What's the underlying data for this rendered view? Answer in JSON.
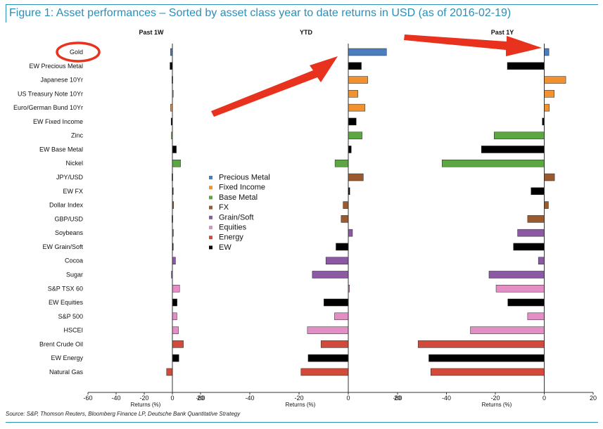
{
  "title": "Figure 1: Asset performances – Sorted by asset class year to date returns in USD (as of 2016-02-19)",
  "source": "Source: S&P, Thomson Reuters, Bloomberg Finance LP, Deutsche Bank Quantitative Strategy",
  "colors": {
    "Precious Metal": "#4a7ebf",
    "Fixed Income": "#f29130",
    "Base Metal": "#5da644",
    "FX": "#9a5a2e",
    "Grain/Soft": "#8b5aa3",
    "Equities": "#e38fc6",
    "Energy": "#d24a3a",
    "EW": "#000000",
    "annotation": "#e8321e"
  },
  "chart_data": {
    "type": "bar",
    "orientation": "horizontal",
    "categories": [
      "Gold",
      "EW Precious Metal",
      "Japanese 10Yr",
      "US Treasury Note 10Yr",
      "Euro/German Bund 10Yr",
      "EW Fixed Income",
      "Zinc",
      "EW Base Metal",
      "Nickel",
      "JPY/USD",
      "EW FX",
      "Dollar Index",
      "GBP/USD",
      "Soybeans",
      "EW Grain/Soft",
      "Cocoa",
      "Sugar",
      "S&P TSX 60",
      "EW Equities",
      "S&P 500",
      "HSCEI",
      "Brent Crude Oil",
      "EW Energy",
      "Natural Gas"
    ],
    "groups": [
      "Precious Metal",
      "Precious Metal",
      "Fixed Income",
      "Fixed Income",
      "Fixed Income",
      "Fixed Income",
      "Base Metal",
      "Base Metal",
      "Base Metal",
      "FX",
      "FX",
      "FX",
      "FX",
      "Grain/Soft",
      "Grain/Soft",
      "Grain/Soft",
      "Grain/Soft",
      "Equities",
      "Equities",
      "Equities",
      "Equities",
      "Energy",
      "Energy",
      "Energy"
    ],
    "ew_rows": [
      "EW Precious Metal",
      "EW Fixed Income",
      "EW Base Metal",
      "EW FX",
      "EW Grain/Soft",
      "EW Equities",
      "EW Energy"
    ],
    "legend": [
      "Precious Metal",
      "Fixed Income",
      "Base Metal",
      "FX",
      "Grain/Soft",
      "Equities",
      "Energy",
      "EW"
    ],
    "highlighted_category": "Gold",
    "panels": [
      {
        "title": "Past 1W",
        "xlabel": "Returns (%)",
        "xlim": [
          -60,
          20
        ],
        "ticks": [
          -60,
          -40,
          -20,
          0,
          20
        ],
        "values": [
          -1.3,
          -1.7,
          -0.3,
          0.2,
          -1.3,
          -0.9,
          -0.7,
          2.8,
          5.8,
          -0.3,
          0.3,
          0.9,
          -0.3,
          0.7,
          0.2,
          2.2,
          -0.7,
          5.1,
          3.3,
          3.2,
          4.3,
          7.8,
          4.6,
          -4.1
        ]
      },
      {
        "title": "YTD",
        "xlabel": "Returns (%)",
        "xlim": [
          -60,
          20
        ],
        "ticks": [
          -60,
          -40,
          -20,
          0,
          20
        ],
        "values": [
          15.5,
          5.3,
          7.9,
          3.9,
          6.8,
          3.2,
          5.6,
          1.2,
          -5.4,
          6.1,
          0.6,
          -2.1,
          -2.9,
          1.7,
          -5.0,
          -9.1,
          -14.6,
          0.5,
          -9.9,
          -5.6,
          -16.6,
          -11.1,
          -16.3,
          -19.2
        ]
      },
      {
        "title": "Past 1Y",
        "xlabel": "Returns (%)",
        "xlim": [
          -60,
          20
        ],
        "ticks": [
          -60,
          -40,
          -20,
          0,
          20
        ],
        "values": [
          1.9,
          -15.1,
          8.8,
          4.1,
          2.1,
          -0.8,
          -20.5,
          -25.7,
          -41.8,
          4.2,
          -5.4,
          1.7,
          -6.8,
          -10.9,
          -12.6,
          -2.4,
          -22.6,
          -19.7,
          -14.9,
          -6.8,
          -30.2,
          -51.6,
          -47.2,
          -46.4
        ]
      }
    ]
  }
}
